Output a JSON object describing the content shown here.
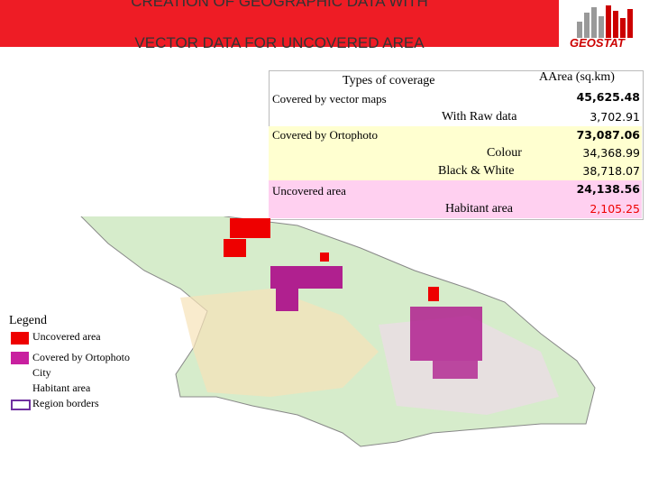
{
  "header": {
    "title_lines": [
      "CREATION OF GEOGRAPHIC DATA WITH",
      "VECTOR DATA FOR UNCOVERED AREA"
    ],
    "logo": "GEOSTAT"
  },
  "table": {
    "columns": [
      "Types of coverage",
      "AArea (sq.km)"
    ],
    "rows": [
      [
        "Covered by vector maps",
        "45,625.48"
      ],
      [
        "With Raw data",
        "3,702.91"
      ],
      [
        "Covered by Ortophoto",
        "73,087.06"
      ],
      [
        "Colour",
        "34,368.99"
      ],
      [
        "Black & White",
        "38,718.07"
      ],
      [
        "Uncovered area",
        "24,138.56"
      ],
      [
        "Habitant area",
        "2,105.25"
      ]
    ]
  },
  "legend": {
    "title": "Legend",
    "items": [
      "Uncovered area",
      "Covered by Ortophoto",
      "City",
      "Habitant area",
      "Region borders"
    ]
  }
}
